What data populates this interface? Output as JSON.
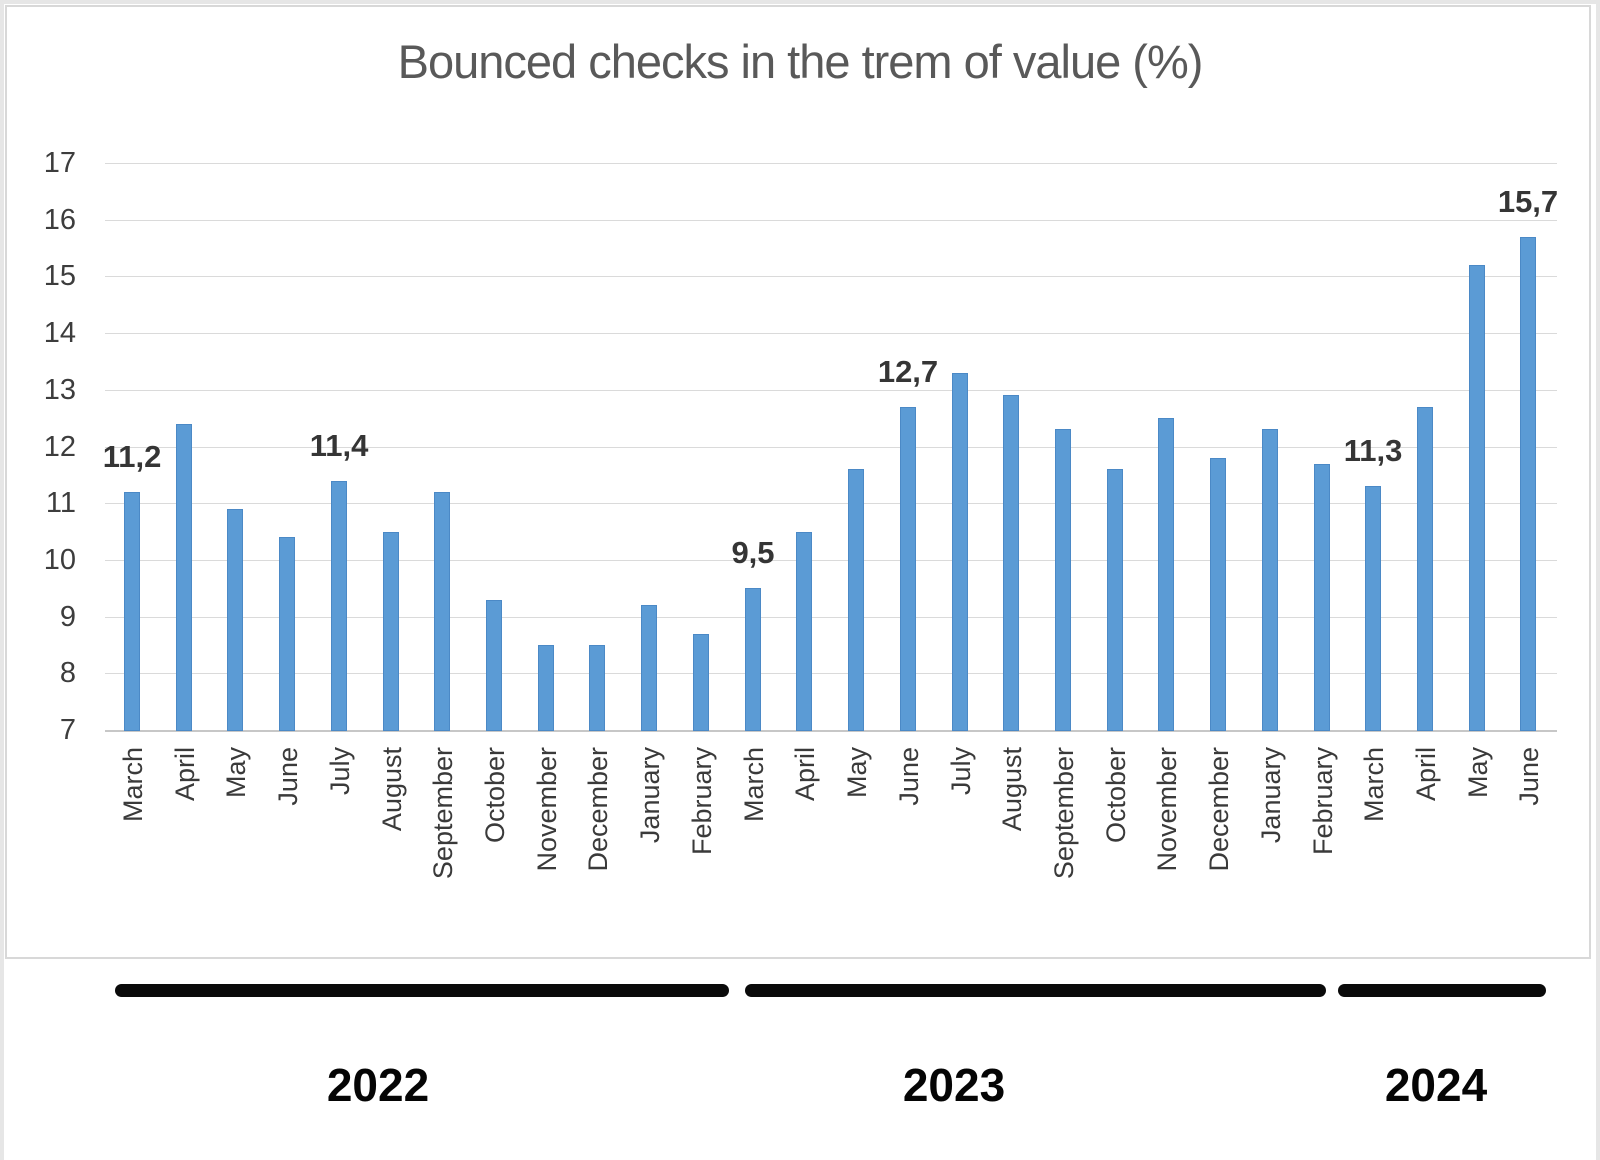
{
  "chart_data": {
    "type": "bar",
    "title": "Bounced checks in the trem of value (%)",
    "categories": [
      "March",
      "April",
      "May",
      "June",
      "July",
      "August",
      "September",
      "October",
      "November",
      "December",
      "January",
      "February",
      "March",
      "April",
      "May",
      "June",
      "July",
      "August",
      "September",
      "October",
      "November",
      "December",
      "January",
      "February",
      "March",
      "April",
      "May",
      "June"
    ],
    "values": [
      11.2,
      12.4,
      10.9,
      10.4,
      11.4,
      10.5,
      11.2,
      9.3,
      8.5,
      8.5,
      9.2,
      8.7,
      9.5,
      10.5,
      11.6,
      12.7,
      13.3,
      12.9,
      12.3,
      11.6,
      12.5,
      11.8,
      12.3,
      11.7,
      11.3,
      12.7,
      15.2,
      15.7
    ],
    "point_labels": [
      {
        "index": 0,
        "text": "11,2"
      },
      {
        "index": 4,
        "text": "11,4"
      },
      {
        "index": 12,
        "text": "9,5"
      },
      {
        "index": 15,
        "text": "12,7"
      },
      {
        "index": 24,
        "text": "11,3"
      },
      {
        "index": 27,
        "text": "15,7"
      }
    ],
    "ylim": [
      7,
      17
    ],
    "yticks": [
      7,
      8,
      9,
      10,
      11,
      12,
      13,
      14,
      15,
      16,
      17
    ],
    "grid": true,
    "legend_position": "none",
    "bar_color": "#5B9BD5",
    "year_groups": [
      {
        "label": "2022",
        "months": 12
      },
      {
        "label": "2023",
        "months": 12
      },
      {
        "label": "2024",
        "months": 4
      }
    ]
  }
}
